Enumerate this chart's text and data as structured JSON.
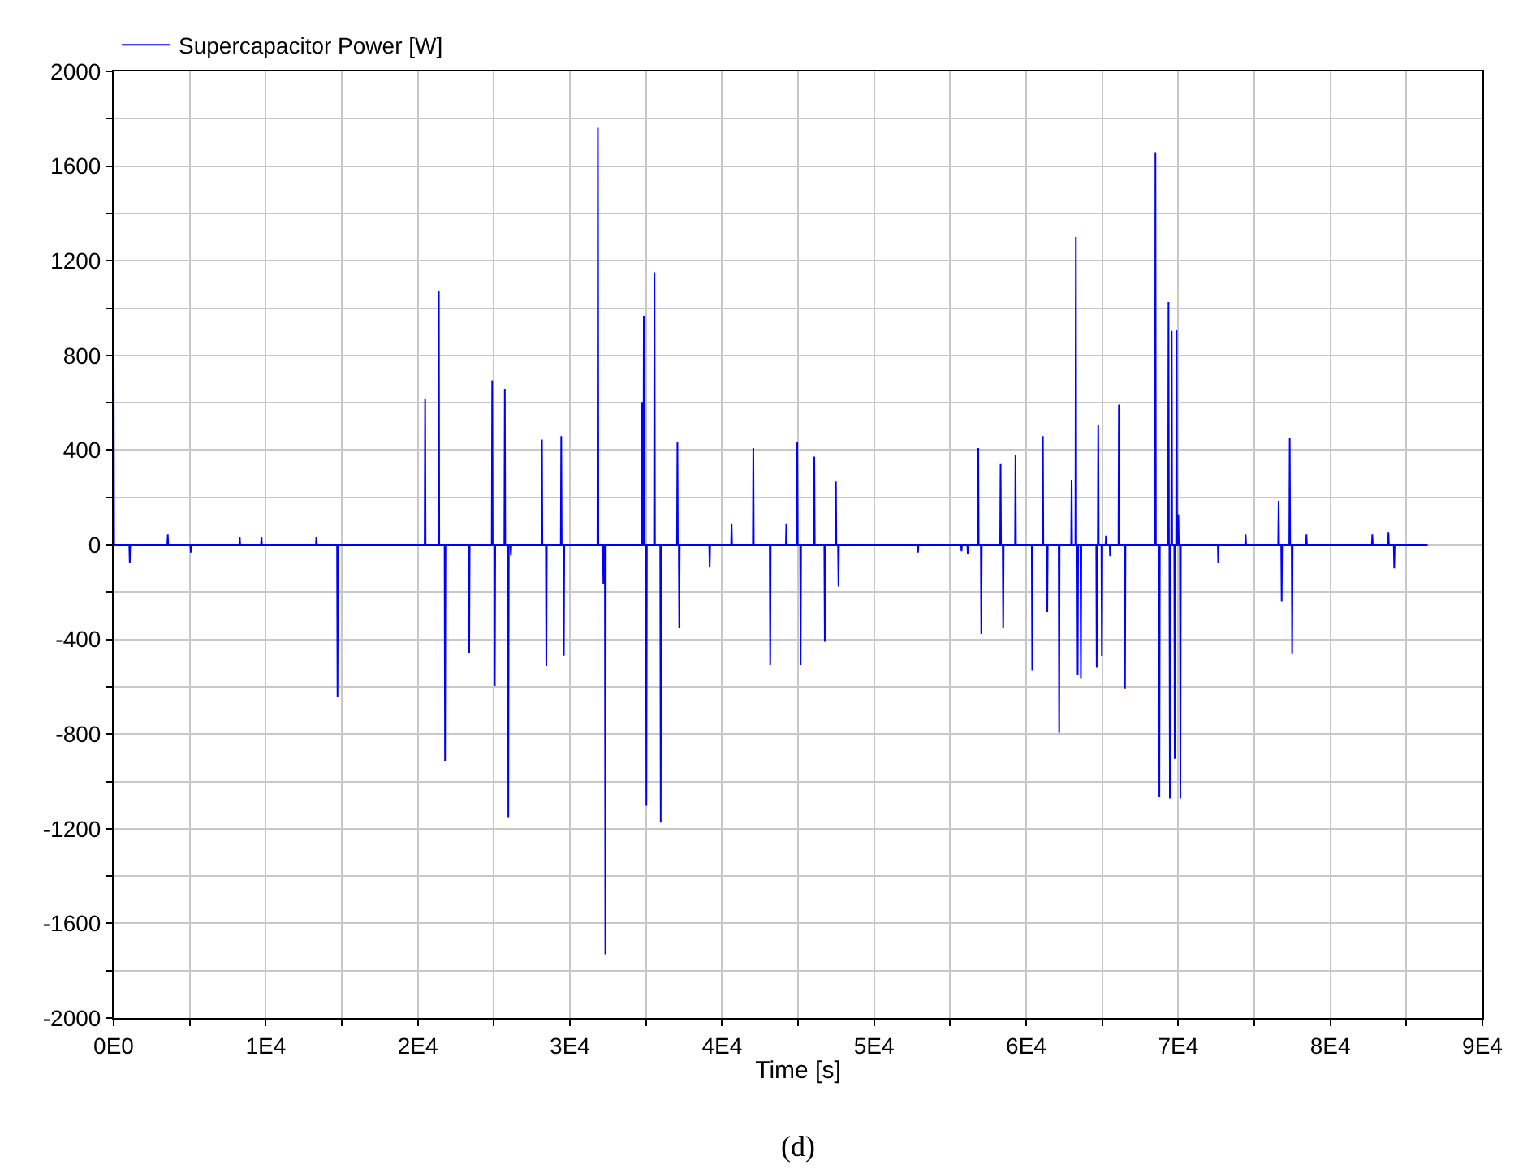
{
  "chart_data": {
    "type": "line",
    "xlabel": "Time [s]",
    "annotations": [
      "(d)"
    ],
    "x": [
      0,
      30,
      1030,
      1060,
      1090,
      3530,
      3560,
      3590,
      5040,
      5070,
      5100,
      8260,
      8290,
      8320,
      9690,
      9720,
      9750,
      13300,
      13330,
      13360,
      14690,
      14720,
      14750,
      20450,
      20480,
      20510,
      21350,
      21380,
      21410,
      21760,
      21790,
      21820,
      23350,
      23380,
      23410,
      24860,
      24890,
      24920,
      25030,
      25060,
      25090,
      25690,
      25720,
      25750,
      25920,
      25950,
      25980,
      26090,
      26120,
      26150,
      28130,
      28160,
      28190,
      28420,
      28450,
      28480,
      29400,
      29430,
      29460,
      29570,
      29600,
      29630,
      31810,
      31840,
      31870,
      32170,
      32200,
      32230,
      32300,
      32330,
      32360,
      34710,
      34740,
      34770,
      34830,
      34860,
      34890,
      35000,
      35030,
      35060,
      35530,
      35560,
      35590,
      35940,
      35970,
      36000,
      37040,
      37070,
      37100,
      37160,
      37190,
      37220,
      39160,
      39190,
      39220,
      40600,
      40630,
      40660,
      42030,
      42060,
      42090,
      43140,
      43170,
      43200,
      44200,
      44230,
      44260,
      44920,
      44950,
      44980,
      45140,
      45170,
      45200,
      46040,
      46070,
      46100,
      46730,
      46760,
      46790,
      47460,
      47490,
      47520,
      47630,
      47660,
      47690,
      52860,
      52890,
      52920,
      55720,
      55750,
      55780,
      56130,
      56160,
      56190,
      56820,
      56850,
      56880,
      57020,
      57050,
      57080,
      58290,
      58320,
      58350,
      58460,
      58490,
      58520,
      59270,
      59300,
      59330,
      60370,
      60400,
      60430,
      61070,
      61100,
      61130,
      61360,
      61390,
      61420,
      62140,
      62170,
      62200,
      62960,
      62990,
      63020,
      63240,
      63270,
      63300,
      63360,
      63390,
      63420,
      63570,
      63600,
      63630,
      64610,
      64640,
      64670,
      64710,
      64740,
      64770,
      64950,
      64980,
      65010,
      65220,
      65250,
      65280,
      65490,
      65520,
      65550,
      66070,
      66100,
      66130,
      66470,
      66500,
      66530,
      68470,
      68500,
      68530,
      68730,
      68760,
      68790,
      69330,
      69360,
      69390,
      69420,
      69450,
      69480,
      69540,
      69570,
      69600,
      69740,
      69770,
      69800,
      69860,
      69890,
      69920,
      69980,
      70010,
      70040,
      70110,
      70140,
      70170,
      72600,
      72630,
      72660,
      74400,
      74430,
      74460,
      76570,
      76600,
      76630,
      76770,
      76800,
      76830,
      77300,
      77330,
      77360,
      77460,
      77490,
      77520,
      78400,
      78430,
      78460,
      82730,
      82760,
      82790,
      83790,
      83820,
      83850,
      84170,
      84200,
      84230,
      86400
    ],
    "series": [
      {
        "name": "Supercapacitor Power [W]",
        "color": "#0000ff",
        "values": [
          762,
          0,
          0,
          -79,
          0,
          0,
          44,
          0,
          0,
          -33,
          0,
          0,
          33,
          0,
          0,
          33,
          0,
          0,
          33,
          0,
          0,
          -644,
          0,
          0,
          618,
          0,
          0,
          1074,
          0,
          0,
          -915,
          0,
          0,
          -456,
          0,
          0,
          695,
          0,
          0,
          -597,
          0,
          0,
          659,
          0,
          0,
          -1154,
          0,
          0,
          -46,
          0,
          0,
          444,
          0,
          0,
          -515,
          0,
          0,
          459,
          0,
          0,
          -469,
          0,
          0,
          1762,
          0,
          0,
          -167,
          0,
          0,
          -1731,
          0,
          0,
          603,
          0,
          0,
          967,
          0,
          0,
          -1103,
          0,
          0,
          1151,
          0,
          0,
          -1174,
          0,
          0,
          433,
          0,
          0,
          -351,
          0,
          0,
          -97,
          0,
          0,
          90,
          0,
          0,
          408,
          0,
          0,
          -508,
          0,
          0,
          90,
          0,
          0,
          436,
          0,
          0,
          -508,
          0,
          0,
          372,
          0,
          0,
          -410,
          0,
          0,
          267,
          0,
          0,
          -177,
          0,
          0,
          -33,
          0,
          0,
          -28,
          0,
          0,
          -38,
          0,
          0,
          408,
          0,
          0,
          -377,
          0,
          0,
          344,
          0,
          0,
          -351,
          0,
          0,
          377,
          0,
          0,
          -530,
          0,
          0,
          459,
          0,
          0,
          -285,
          0,
          0,
          -795,
          0,
          0,
          274,
          0,
          0,
          1300,
          0,
          0,
          -551,
          0,
          0,
          -564,
          0,
          0,
          -520,
          0,
          0,
          505,
          0,
          0,
          -470,
          0,
          0,
          38,
          0,
          0,
          -49,
          0,
          0,
          592,
          0,
          0,
          -610,
          0,
          0,
          1659,
          0,
          0,
          -1067,
          0,
          0,
          1026,
          0,
          0,
          -1072,
          0,
          0,
          903,
          0,
          0,
          -905,
          0,
          0,
          908,
          0,
          0,
          128,
          0,
          0,
          -1072,
          0,
          0,
          -79,
          0,
          0,
          44,
          0,
          0,
          185,
          0,
          0,
          -238,
          0,
          0,
          451,
          0,
          0,
          -459,
          0,
          0,
          44,
          0,
          0,
          44,
          0,
          0,
          54,
          0,
          0,
          -100,
          0,
          0
        ]
      }
    ],
    "xlim": [
      0,
      90000
    ],
    "xticks": [
      {
        "value": 0,
        "label": "0E0"
      },
      {
        "value": 5000,
        "label": null
      },
      {
        "value": 10000,
        "label": "1E4"
      },
      {
        "value": 15000,
        "label": null
      },
      {
        "value": 20000,
        "label": "2E4"
      },
      {
        "value": 25000,
        "label": null
      },
      {
        "value": 30000,
        "label": "3E4"
      },
      {
        "value": 35000,
        "label": null
      },
      {
        "value": 40000,
        "label": "4E4"
      },
      {
        "value": 45000,
        "label": null
      },
      {
        "value": 50000,
        "label": "5E4"
      },
      {
        "value": 55000,
        "label": null
      },
      {
        "value": 60000,
        "label": "6E4"
      },
      {
        "value": 65000,
        "label": null
      },
      {
        "value": 70000,
        "label": "7E4"
      },
      {
        "value": 75000,
        "label": null
      },
      {
        "value": 80000,
        "label": "8E4"
      },
      {
        "value": 85000,
        "label": null
      },
      {
        "value": 90000,
        "label": "9E4"
      }
    ],
    "ylim": [
      -2000,
      2000
    ],
    "yticks": [
      -2000,
      {
        "value": -1800,
        "label": null
      },
      -1600,
      {
        "value": -1400,
        "label": null
      },
      -1200,
      {
        "value": -1000,
        "label": null
      },
      -800,
      {
        "value": -600,
        "label": null
      },
      -400,
      {
        "value": -200,
        "label": null
      },
      0,
      {
        "value": 200,
        "label": null
      },
      400,
      {
        "value": 600,
        "label": null
      },
      800,
      {
        "value": 1000,
        "label": null
      },
      1200,
      {
        "value": 1400,
        "label": null
      },
      1600,
      {
        "value": 1800,
        "label": null
      },
      2000
    ],
    "grid": true,
    "legend": "top left",
    "marker": "none",
    "line_style": "solid"
  }
}
